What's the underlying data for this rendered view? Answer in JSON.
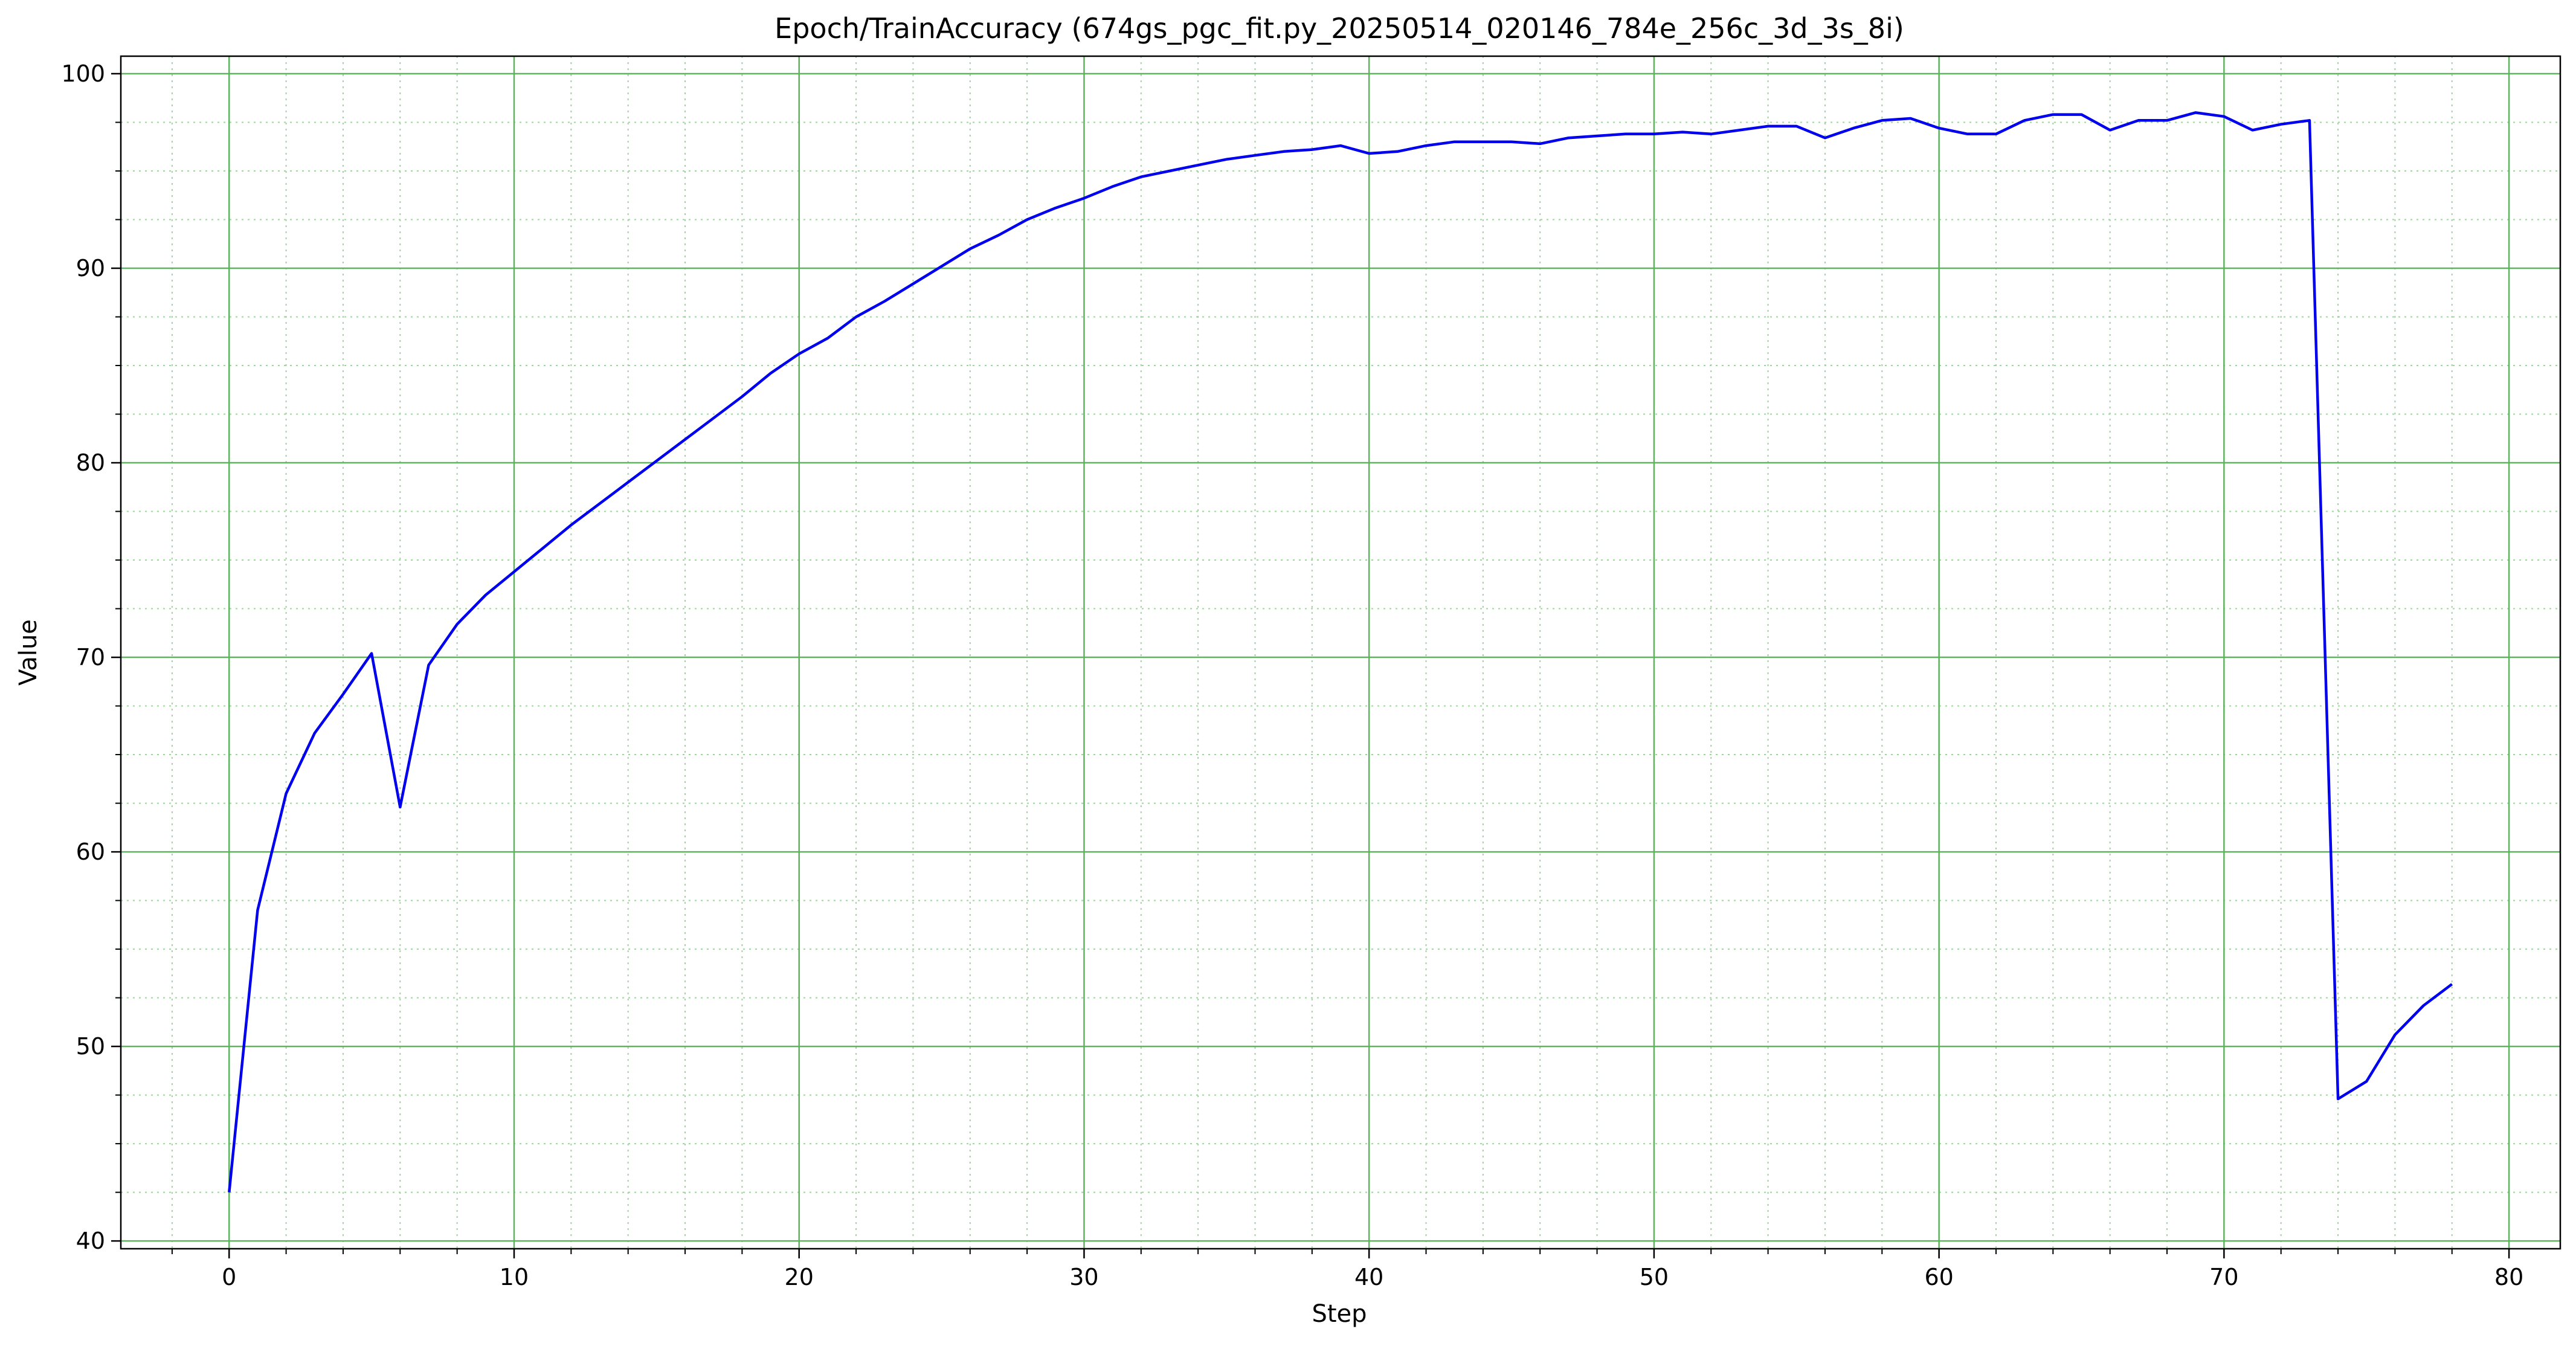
{
  "chart_data": {
    "type": "line",
    "title": "Epoch/TrainAccuracy (674gs_pgc_fit.py_20250514_020146_784e_256c_3d_3s_8i)",
    "xlabel": "Step",
    "ylabel": "Value",
    "xlim": [
      -3.8,
      81.8
    ],
    "ylim": [
      39.6,
      100.9
    ],
    "xticks": [
      0,
      10,
      20,
      30,
      40,
      50,
      60,
      70,
      80
    ],
    "yticks": [
      40,
      50,
      60,
      70,
      80,
      90,
      100
    ],
    "xtick_labels": [
      "0",
      "10",
      "20",
      "30",
      "40",
      "50",
      "60",
      "70",
      "80"
    ],
    "ytick_labels": [
      "40",
      "50",
      "60",
      "70",
      "80",
      "90",
      "100"
    ],
    "grid": {
      "major": true,
      "minor": true,
      "major_color": "#5fb35f",
      "minor_color": "#9fd49f"
    },
    "line_color": "#0000ee",
    "series": [
      {
        "x": [
          0,
          1,
          2,
          3,
          4,
          5,
          6,
          7,
          8,
          9,
          10,
          11,
          12,
          13,
          14,
          15,
          16,
          17,
          18,
          19,
          20,
          21,
          22,
          23,
          24,
          25,
          26,
          27,
          28,
          29,
          30,
          31,
          32,
          33,
          34,
          35,
          36,
          37,
          38,
          39,
          40,
          41,
          42,
          43,
          44,
          45,
          46,
          47,
          48,
          49,
          50,
          51,
          52,
          53,
          54,
          55,
          56,
          57,
          58,
          59,
          60,
          61,
          62,
          63,
          64,
          65,
          66,
          67,
          68,
          69,
          70,
          71,
          72,
          73,
          74,
          75,
          76,
          77,
          78
        ],
        "values": [
          42.5,
          57.0,
          63.0,
          66.1,
          68.1,
          70.2,
          62.3,
          69.6,
          71.7,
          73.2,
          74.4,
          75.6,
          76.8,
          77.9,
          79.0,
          80.1,
          81.2,
          82.3,
          83.4,
          84.6,
          85.6,
          86.4,
          87.5,
          88.3,
          89.2,
          90.1,
          91.0,
          91.7,
          92.5,
          93.1,
          93.6,
          94.2,
          94.7,
          95.0,
          95.3,
          95.6,
          95.8,
          96.0,
          96.1,
          96.3,
          95.9,
          96.0,
          96.3,
          96.5,
          96.5,
          96.5,
          96.4,
          96.7,
          96.8,
          96.9,
          96.9,
          97.0,
          96.9,
          97.1,
          97.3,
          97.3,
          96.7,
          97.2,
          97.6,
          97.7,
          97.2,
          96.9,
          96.9,
          97.6,
          97.9,
          97.9,
          97.1,
          97.6,
          97.6,
          98.0,
          97.8,
          97.1,
          97.4,
          97.6,
          47.3,
          48.2,
          50.6,
          52.1,
          53.2
        ]
      }
    ]
  }
}
